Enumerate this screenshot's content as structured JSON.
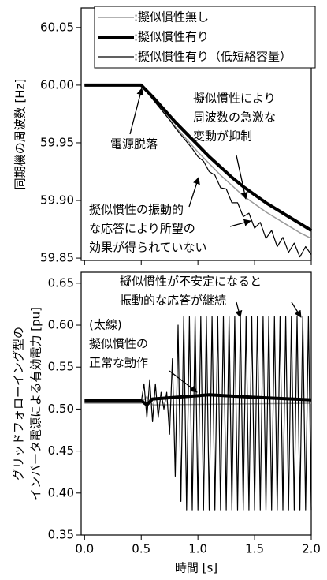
{
  "chart_data": [
    {
      "type": "line",
      "ylabel": "同期機の周波数 [Hz]",
      "xlim": [
        -0.03,
        2.0
      ],
      "ylim": [
        59.848,
        60.067
      ],
      "yticks": [
        60.05,
        {
          "value": 60,
          "label": "60.00"
        },
        59.95,
        {
          "value": 59.9,
          "label": "59.90"
        },
        59.85
      ],
      "legend": "top-right",
      "series": [
        {
          "name": ":擬似慣性無し",
          "color": "#999999",
          "linewidth": 1.5,
          "x": [
            0,
            0.1,
            0.2,
            0.3,
            0.4,
            0.5,
            0.6,
            0.7,
            0.8,
            0.9,
            1.0,
            1.1,
            1.2,
            1.3,
            1.4,
            1.5,
            1.6,
            1.7,
            1.8,
            1.9,
            2.0
          ],
          "values": [
            60,
            60,
            60,
            60,
            60,
            60,
            59.988,
            59.976,
            59.964,
            59.953,
            59.942,
            59.932,
            59.922,
            59.913,
            59.904,
            59.897,
            59.89,
            59.884,
            59.878,
            59.872,
            59.867
          ]
        },
        {
          "name": ":擬似慣性有り",
          "color": "#000000",
          "linewidth": 4,
          "x": [
            0,
            0.1,
            0.2,
            0.3,
            0.4,
            0.5,
            0.6,
            0.7,
            0.8,
            0.9,
            1.0,
            1.1,
            1.2,
            1.3,
            1.4,
            1.5,
            1.6,
            1.7,
            1.8,
            1.9,
            2.0
          ],
          "values": [
            60,
            60,
            60,
            60,
            60,
            60,
            59.99,
            59.979,
            59.968,
            59.958,
            59.948,
            59.938,
            59.929,
            59.92,
            59.912,
            59.905,
            59.898,
            59.892,
            59.886,
            59.88,
            59.874
          ]
        },
        {
          "name": ":擬似慣性有り（低短絡容量）",
          "color": "#000000",
          "linewidth": 1.2,
          "x": [
            0,
            0.5,
            0.55,
            0.6,
            0.65,
            0.7,
            0.75,
            0.8,
            0.85,
            0.9,
            0.95,
            1.0,
            1.05,
            1.1,
            1.15,
            1.2,
            1.25,
            1.3,
            1.35,
            1.4,
            1.45,
            1.5,
            1.55,
            1.6,
            1.65,
            1.7,
            1.75,
            1.8,
            1.85,
            1.9,
            1.95,
            2.0
          ],
          "values": [
            60,
            60,
            59.994,
            59.988,
            59.982,
            59.976,
            59.97,
            59.963,
            59.957,
            59.951,
            59.945,
            59.938,
            59.934,
            59.925,
            59.922,
            59.911,
            59.91,
            59.898,
            59.898,
            59.886,
            59.889,
            59.876,
            59.881,
            59.867,
            59.874,
            59.86,
            59.868,
            59.855,
            59.863,
            59.851,
            59.86,
            59.853
          ]
        }
      ],
      "annotations": [
        {
          "lines": [
            "電源脱落"
          ]
        },
        {
          "lines": [
            "擬似慣性により",
            "周波数の急激な",
            "変動が抑制"
          ]
        },
        {
          "lines": [
            "擬似慣性の振動的",
            "な応答により所望の",
            "効果が得られていない"
          ]
        }
      ]
    },
    {
      "type": "line",
      "ylabel": [
        "グリッドフォローイング型の",
        "インバータ電源による有効電力 [pu]"
      ],
      "xlabel": "時間 [s]",
      "xlim": [
        -0.03,
        2.0
      ],
      "ylim": [
        0.35,
        0.663
      ],
      "xticks": [
        {
          "value": 0,
          "label": "0.0"
        },
        0.5,
        {
          "value": 1,
          "label": "1.0"
        },
        1.5,
        {
          "value": 2,
          "label": "2.0"
        }
      ],
      "yticks": [
        0.65,
        {
          "value": 0.6,
          "label": "0.60"
        },
        0.55,
        {
          "value": 0.5,
          "label": "0.50"
        },
        0.45,
        {
          "value": 0.4,
          "label": "0.40"
        },
        0.35
      ],
      "series": [
        {
          "color": "#999999",
          "linewidth": 1.5,
          "x": [
            0,
            0.5,
            0.55,
            0.6,
            2.0
          ],
          "values": [
            0.507,
            0.507,
            0.515,
            0.505,
            0.507
          ]
        },
        {
          "color": "#000000",
          "linewidth": 1.2,
          "x": [
            0,
            0.5,
            0.525,
            0.55,
            0.575,
            0.6,
            0.625,
            0.65,
            0.675,
            0.7,
            0.725,
            0.75,
            0.775,
            0.8,
            0.825,
            0.85,
            0.875,
            0.9,
            0.925,
            0.95,
            0.975,
            1.0,
            1.025,
            1.05,
            1.075,
            1.1,
            1.125,
            1.15,
            1.175,
            1.2,
            1.225,
            1.25,
            1.275,
            1.3,
            1.325,
            1.35,
            1.375,
            1.4,
            1.425,
            1.45,
            1.475,
            1.5,
            1.525,
            1.55,
            1.575,
            1.6,
            1.625,
            1.65,
            1.675,
            1.7,
            1.725,
            1.75,
            1.775,
            1.8,
            1.825,
            1.85,
            1.875,
            1.9,
            1.925,
            1.95,
            1.975,
            2.0
          ],
          "values": [
            0.508,
            0.508,
            0.53,
            0.49,
            0.535,
            0.485,
            0.53,
            0.49,
            0.52,
            0.5,
            0.52,
            0.47,
            0.56,
            0.42,
            0.6,
            0.39,
            0.61,
            0.38,
            0.61,
            0.38,
            0.61,
            0.38,
            0.61,
            0.38,
            0.61,
            0.38,
            0.61,
            0.38,
            0.61,
            0.38,
            0.61,
            0.38,
            0.61,
            0.38,
            0.61,
            0.38,
            0.61,
            0.38,
            0.61,
            0.38,
            0.61,
            0.38,
            0.61,
            0.38,
            0.61,
            0.38,
            0.61,
            0.38,
            0.61,
            0.38,
            0.61,
            0.38,
            0.61,
            0.38,
            0.61,
            0.38,
            0.61,
            0.38,
            0.61,
            0.38,
            0.61,
            0.38
          ]
        },
        {
          "color": "#000000",
          "linewidth": 4,
          "x": [
            0,
            0.5,
            0.55,
            0.6,
            0.8,
            1.1,
            1.5,
            2.0
          ],
          "values": [
            0.51,
            0.51,
            0.505,
            0.512,
            0.514,
            0.517,
            0.514,
            0.511
          ]
        }
      ],
      "annotations": [
        {
          "lines": [
            "(太線)",
            "擬似慣性の",
            "正常な動作"
          ]
        },
        {
          "lines": [
            "擬似慣性が不安定になると",
            "振動的な応答が継続"
          ]
        }
      ]
    }
  ]
}
